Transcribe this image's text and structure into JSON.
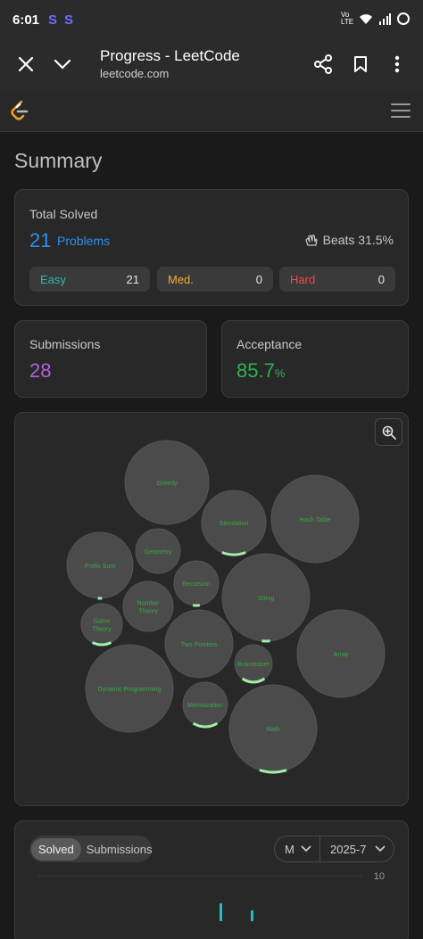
{
  "status_bar": {
    "time": "6:01",
    "app_badges": [
      "S",
      "S"
    ],
    "network_label": "Vo LTE"
  },
  "browser": {
    "title": "Progress - LeetCode",
    "url": "leetcode.com"
  },
  "summary_title": "Summary",
  "total_solved": {
    "label": "Total Solved",
    "count": "21",
    "unit": "Problems",
    "beats": "Beats 31.5%",
    "difficulty": [
      {
        "name": "Easy",
        "value": "21"
      },
      {
        "name": "Med.",
        "value": "0"
      },
      {
        "name": "Hard",
        "value": "0"
      }
    ]
  },
  "submissions": {
    "label": "Submissions",
    "value": "28"
  },
  "acceptance": {
    "label": "Acceptance",
    "value": "85.7",
    "unit": "%"
  },
  "topic_bubbles": [
    {
      "label": "Greedy"
    },
    {
      "label": "Simulation"
    },
    {
      "label": "Hash Table"
    },
    {
      "label": "Prefix Sum"
    },
    {
      "label": "Geometry"
    },
    {
      "label": "Recursion"
    },
    {
      "label": "String"
    },
    {
      "label": "Number Theory"
    },
    {
      "label": "Game Theory"
    },
    {
      "label": "Two Pointers"
    },
    {
      "label": "Array"
    },
    {
      "label": "Brainteaser"
    },
    {
      "label": "Dynamic Programming"
    },
    {
      "label": "Memoization"
    },
    {
      "label": "Math"
    }
  ],
  "activity": {
    "tabs": [
      "Solved",
      "Submissions"
    ],
    "period": "M",
    "month": "2025-7",
    "y_max_label": "10",
    "colors": {
      "bar": "#2bb8c8"
    }
  },
  "colors": {
    "easy": "#2bb8b8",
    "medium": "#f3aa2d",
    "hard": "#ea4a4a",
    "solved_blue": "#2f8fe8",
    "submissions_purple": "#b25fe0",
    "acceptance_green": "#2fb350",
    "bubble_fill": "#4b4b4b",
    "bubble_label": "#3aa845",
    "progress_arc": "#9ef0a8"
  }
}
